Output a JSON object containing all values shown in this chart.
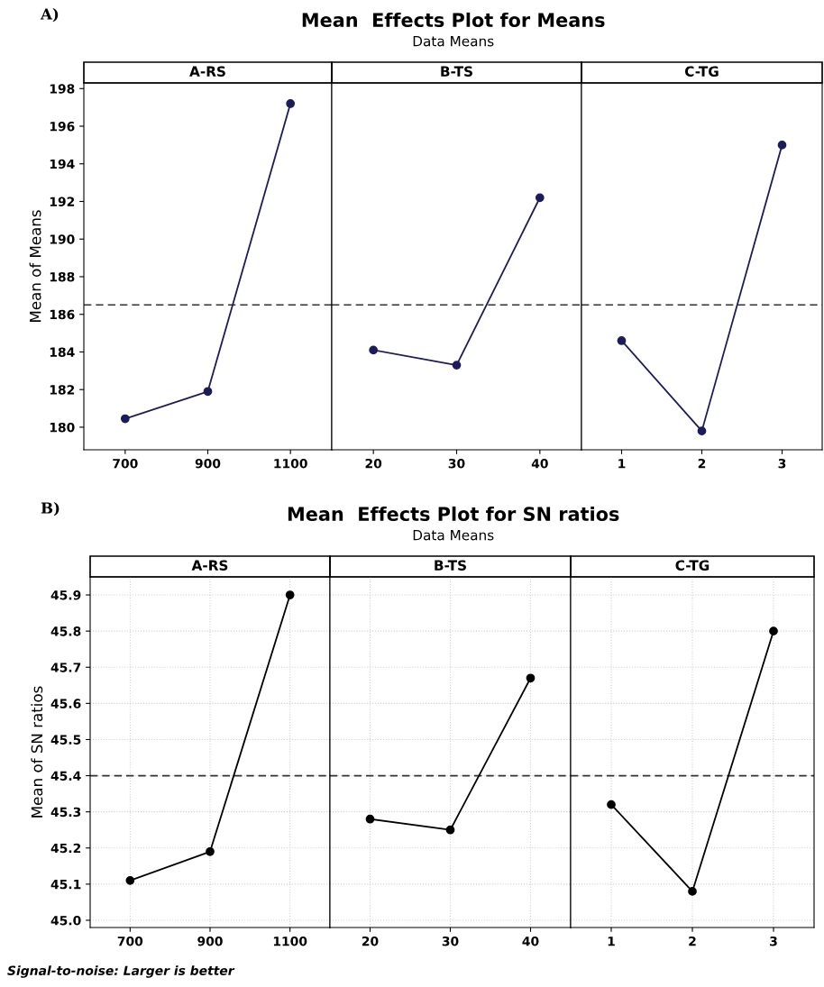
{
  "chart_data": [
    {
      "type": "line",
      "title": "A-RS",
      "ylabel": "Mean of Means",
      "annotations": [
        "A)",
        "Mean  Effects Plot for Means",
        "Data Means"
      ],
      "categories": [
        "700",
        "900",
        "1100"
      ],
      "series": [
        {
          "color": "#1c1c5a",
          "values": [
            180.45,
            181.9,
            197.2
          ]
        }
      ],
      "ylim": [
        178.8,
        198.3
      ],
      "yticks": [
        180,
        182,
        184,
        186,
        188,
        190,
        192,
        194,
        196,
        198
      ],
      "ref_lines": [
        {
          "axis": "y",
          "value": 186.5,
          "color": "#333333",
          "line_style": "dashed"
        }
      ],
      "marker": "circle",
      "line_style": "solid",
      "grid": false
    },
    {
      "type": "line",
      "title": "B-TS",
      "categories": [
        "20",
        "30",
        "40"
      ],
      "series": [
        {
          "color": "#1c1c5a",
          "values": [
            184.1,
            183.3,
            192.2
          ]
        }
      ],
      "ylim": [
        178.8,
        198.3
      ],
      "tick_labels": "x",
      "ref_lines": [
        {
          "axis": "y",
          "value": 186.5,
          "color": "#333333",
          "line_style": "dashed"
        }
      ],
      "marker": "circle",
      "line_style": "solid",
      "grid": false
    },
    {
      "type": "line",
      "title": "C-TG",
      "categories": [
        "1",
        "2",
        "3"
      ],
      "series": [
        {
          "color": "#1c1c5a",
          "values": [
            184.6,
            179.8,
            195.0
          ]
        }
      ],
      "ylim": [
        178.8,
        198.3
      ],
      "tick_labels": "x",
      "ref_lines": [
        {
          "axis": "y",
          "value": 186.5,
          "color": "#333333",
          "line_style": "dashed"
        }
      ],
      "marker": "circle",
      "line_style": "solid",
      "grid": false
    },
    {
      "type": "line",
      "title": "A-RS",
      "ylabel": "Mean of SN ratios",
      "annotations": [
        "B)",
        "Mean  Effects Plot for SN ratios",
        "Data Means",
        "Signal-to-noise: Larger is better"
      ],
      "categories": [
        "700",
        "900",
        "1100"
      ],
      "series": [
        {
          "color": "#000000",
          "values": [
            45.11,
            45.19,
            45.9
          ]
        }
      ],
      "ylim": [
        44.98,
        45.95
      ],
      "yticks": [
        {
          "value": 45.0,
          "label": "45.0"
        },
        45.1,
        45.2,
        45.3,
        45.4,
        45.5,
        45.6,
        45.7,
        45.8,
        45.9
      ],
      "ref_lines": [
        {
          "axis": "y",
          "value": 45.4,
          "color": "#333333",
          "line_style": "dashed"
        }
      ],
      "marker": "circle",
      "line_style": "solid",
      "grid": true
    },
    {
      "type": "line",
      "title": "B-TS",
      "categories": [
        "20",
        "30",
        "40"
      ],
      "series": [
        {
          "color": "#000000",
          "values": [
            45.28,
            45.25,
            45.67
          ]
        }
      ],
      "ylim": [
        44.98,
        45.95
      ],
      "yticks": [
        45.0,
        45.1,
        45.2,
        45.3,
        45.4,
        45.5,
        45.6,
        45.7,
        45.8,
        45.9
      ],
      "tick_labels": "x",
      "ref_lines": [
        {
          "axis": "y",
          "value": 45.4,
          "color": "#333333",
          "line_style": "dashed"
        }
      ],
      "marker": "circle",
      "line_style": "solid",
      "grid": true
    },
    {
      "type": "line",
      "title": "C-TG",
      "categories": [
        "1",
        "2",
        "3"
      ],
      "series": [
        {
          "color": "#000000",
          "values": [
            45.32,
            45.08,
            45.8
          ]
        }
      ],
      "ylim": [
        44.98,
        45.95
      ],
      "yticks": [
        45.0,
        45.1,
        45.2,
        45.3,
        45.4,
        45.5,
        45.6,
        45.7,
        45.8,
        45.9
      ],
      "tick_labels": "x",
      "ref_lines": [
        {
          "axis": "y",
          "value": 45.4,
          "color": "#333333",
          "line_style": "dashed"
        }
      ],
      "marker": "circle",
      "line_style": "solid",
      "grid": true
    }
  ]
}
